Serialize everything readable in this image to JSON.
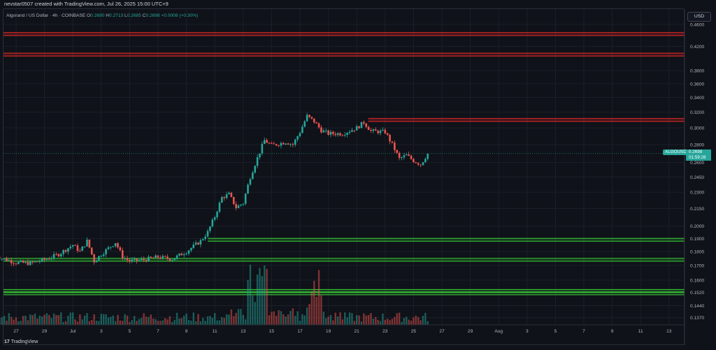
{
  "header": {
    "attribution": "nevstar0507 created with TradingView.com, Jul 26, 2025 15:00 UTC+9"
  },
  "legend": {
    "title": "Algorand / US Dollar · 4h · COINBASE",
    "open_label": "O",
    "open": "0.2690",
    "high_label": "H",
    "high": "0.2713",
    "low_label": "L",
    "low": "0.2685",
    "close_label": "C",
    "close": "0.2698",
    "change": "+0.0008 (+0.30%)"
  },
  "currency_button": "USD",
  "price_tag": {
    "symbol": "ALGOUSD",
    "price": "0.2698",
    "countdown": "01:59:28"
  },
  "footer": {
    "logo_mark": "17",
    "brand": "TradingView"
  },
  "colors": {
    "up": "#26a69a",
    "down": "#ef5350",
    "resistance": "#ff2d2d",
    "support": "#3ddc3d",
    "background": "#0f1218"
  },
  "chart_data": {
    "type": "candlestick",
    "timeframe": "4h",
    "y_scale": "log",
    "ylim": [
      0.133,
      0.49
    ],
    "y_ticks": [
      "0.4600",
      "0.4200",
      "0.3800",
      "0.3600",
      "0.3400",
      "0.3200",
      "0.3000",
      "0.2800",
      "0.2600",
      "0.2450",
      "0.2300",
      "0.2150",
      "0.2000",
      "0.1900",
      "0.1800",
      "0.1700",
      "0.1600",
      "0.1520",
      "0.1440",
      "0.1370"
    ],
    "x_ticks": [
      "27",
      "29",
      "Jul",
      "3",
      "5",
      "7",
      "9",
      "11",
      "13",
      "15",
      "17",
      "19",
      "21",
      "23",
      "25",
      "27",
      "29",
      "Aug",
      "3",
      "5",
      "7",
      "9",
      "11",
      "13"
    ],
    "close_path": [
      {
        "x": "Jun 25.5",
        "close": 0.178
      },
      {
        "x": "Jun 26",
        "close": 0.175
      },
      {
        "x": "Jun 27",
        "close": 0.172
      },
      {
        "x": "Jun 28",
        "close": 0.1715
      },
      {
        "x": "Jun 29",
        "close": 0.174
      },
      {
        "x": "Jun 30",
        "close": 0.178
      },
      {
        "x": "Jul 1",
        "close": 0.185
      },
      {
        "x": "Jul 1.5",
        "close": 0.18
      },
      {
        "x": "Jul 2",
        "close": 0.188
      },
      {
        "x": "Jul 2.5",
        "close": 0.173
      },
      {
        "x": "Jul 3",
        "close": 0.178
      },
      {
        "x": "Jul 4",
        "close": 0.187
      },
      {
        "x": "Jul 4.5",
        "close": 0.176
      },
      {
        "x": "Jul 5",
        "close": 0.173
      },
      {
        "x": "Jul 6",
        "close": 0.174
      },
      {
        "x": "Jul 7",
        "close": 0.176
      },
      {
        "x": "Jul 8",
        "close": 0.1745
      },
      {
        "x": "Jul 9",
        "close": 0.18
      },
      {
        "x": "Jul 10",
        "close": 0.188
      },
      {
        "x": "Jul 10.5",
        "close": 0.195
      },
      {
        "x": "Jul 11",
        "close": 0.208
      },
      {
        "x": "Jul 11.5",
        "close": 0.225
      },
      {
        "x": "Jul 12",
        "close": 0.228
      },
      {
        "x": "Jul 12.5",
        "close": 0.216
      },
      {
        "x": "Jul 13",
        "close": 0.22
      },
      {
        "x": "Jul 13.5",
        "close": 0.245
      },
      {
        "x": "Jul 14",
        "close": 0.265
      },
      {
        "x": "Jul 14.5",
        "close": 0.285
      },
      {
        "x": "Jul 15",
        "close": 0.279
      },
      {
        "x": "Jul 16",
        "close": 0.283
      },
      {
        "x": "Jul 16.5",
        "close": 0.28
      },
      {
        "x": "Jul 17",
        "close": 0.295
      },
      {
        "x": "Jul 17.5",
        "close": 0.315
      },
      {
        "x": "Jul 18",
        "close": 0.308
      },
      {
        "x": "Jul 18.5",
        "close": 0.297
      },
      {
        "x": "Jul 19",
        "close": 0.293
      },
      {
        "x": "Jul 20",
        "close": 0.293
      },
      {
        "x": "Jul 21",
        "close": 0.3
      },
      {
        "x": "Jul 21.5",
        "close": 0.307
      },
      {
        "x": "Jul 22",
        "close": 0.296
      },
      {
        "x": "Jul 23",
        "close": 0.295
      },
      {
        "x": "Jul 23.5",
        "close": 0.28
      },
      {
        "x": "Jul 24",
        "close": 0.264
      },
      {
        "x": "Jul 24.5",
        "close": 0.268
      },
      {
        "x": "Jul 25",
        "close": 0.262
      },
      {
        "x": "Jul 25.5",
        "close": 0.258
      },
      {
        "x": "Jul 26",
        "close": 0.2698
      }
    ],
    "last_price": 0.2698,
    "horizontal_levels": [
      {
        "type": "resistance",
        "value": 0.442
      },
      {
        "type": "resistance",
        "value": 0.406
      },
      {
        "type": "resistance",
        "value": 0.31
      },
      {
        "type": "support",
        "value": 0.189
      },
      {
        "type": "support",
        "value": 0.174
      },
      {
        "type": "support",
        "value": 0.153
      },
      {
        "type": "support",
        "value": 0.1515
      }
    ],
    "grid": true
  }
}
